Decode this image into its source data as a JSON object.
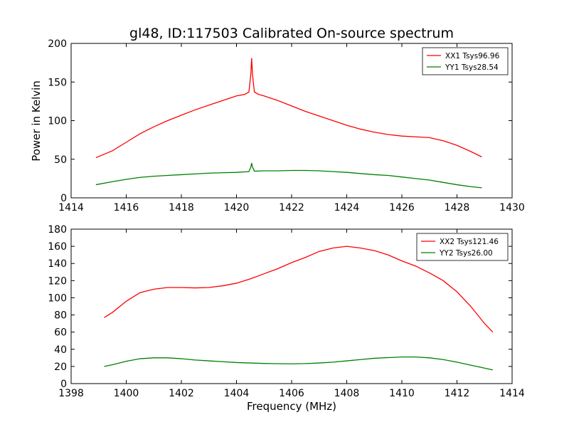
{
  "figure": {
    "title": "gl48, ID:117503 Calibrated On-source spectrum",
    "ylabel": "Power in Kelvin",
    "xlabel": "Frequency (MHz)"
  },
  "chart_data": [
    {
      "type": "line",
      "xlim": [
        1414,
        1430
      ],
      "ylim": [
        0,
        200
      ],
      "xticks": [
        1414,
        1416,
        1418,
        1420,
        1422,
        1424,
        1426,
        1428,
        1430
      ],
      "yticks": [
        0,
        50,
        100,
        150,
        200
      ],
      "legend_placement": "top-right",
      "series": [
        {
          "name": "XX1 Tsys96.96",
          "color": "#ff0000",
          "points": [
            [
              1414.9,
              52
            ],
            [
              1415.5,
              61
            ],
            [
              1416,
              72
            ],
            [
              1416.5,
              83
            ],
            [
              1417,
              92
            ],
            [
              1417.5,
              100
            ],
            [
              1418,
              107
            ],
            [
              1418.5,
              114
            ],
            [
              1419,
              120
            ],
            [
              1419.5,
              126
            ],
            [
              1420,
              132
            ],
            [
              1420.3,
              134
            ],
            [
              1420.45,
              137
            ],
            [
              1420.52,
              160
            ],
            [
              1420.55,
              181
            ],
            [
              1420.58,
              160
            ],
            [
              1420.65,
              137
            ],
            [
              1420.8,
              134
            ],
            [
              1421,
              132
            ],
            [
              1421.5,
              126
            ],
            [
              1422,
              119
            ],
            [
              1422.5,
              112
            ],
            [
              1423,
              106
            ],
            [
              1423.5,
              100
            ],
            [
              1424,
              94
            ],
            [
              1424.5,
              89
            ],
            [
              1425,
              85
            ],
            [
              1425.5,
              82
            ],
            [
              1426,
              80
            ],
            [
              1426.5,
              79
            ],
            [
              1427,
              78
            ],
            [
              1427.5,
              74
            ],
            [
              1428,
              68
            ],
            [
              1428.5,
              60
            ],
            [
              1428.9,
              53
            ]
          ]
        },
        {
          "name": "YY1 Tsys28.54",
          "color": "#008000",
          "points": [
            [
              1414.9,
              17
            ],
            [
              1415.5,
              21
            ],
            [
              1416,
              24
            ],
            [
              1416.5,
              26.5
            ],
            [
              1417,
              28
            ],
            [
              1417.5,
              29
            ],
            [
              1418,
              30
            ],
            [
              1418.5,
              31
            ],
            [
              1419,
              32
            ],
            [
              1419.5,
              32.5
            ],
            [
              1420,
              33
            ],
            [
              1420.45,
              34
            ],
            [
              1420.52,
              40
            ],
            [
              1420.55,
              45
            ],
            [
              1420.58,
              40
            ],
            [
              1420.65,
              34.5
            ],
            [
              1421,
              35
            ],
            [
              1421.5,
              35
            ],
            [
              1422,
              35.5
            ],
            [
              1422.5,
              35.5
            ],
            [
              1423,
              35
            ],
            [
              1423.5,
              34
            ],
            [
              1424,
              33
            ],
            [
              1424.5,
              31.5
            ],
            [
              1425,
              30
            ],
            [
              1425.5,
              29
            ],
            [
              1426,
              27
            ],
            [
              1426.5,
              25
            ],
            [
              1427,
              23
            ],
            [
              1427.5,
              20
            ],
            [
              1428,
              17
            ],
            [
              1428.5,
              14.5
            ],
            [
              1428.9,
              13
            ]
          ]
        }
      ]
    },
    {
      "type": "line",
      "xlim": [
        1398,
        1414
      ],
      "ylim": [
        0,
        180
      ],
      "xticks": [
        1398,
        1400,
        1402,
        1404,
        1406,
        1408,
        1410,
        1412,
        1414
      ],
      "yticks": [
        0,
        20,
        40,
        60,
        80,
        100,
        120,
        140,
        160,
        180
      ],
      "legend_placement": "top-right",
      "series": [
        {
          "name": "XX2 Tsys121.46",
          "color": "#ff0000",
          "points": [
            [
              1399.2,
              77
            ],
            [
              1399.5,
              83
            ],
            [
              1400,
              96
            ],
            [
              1400.5,
              106
            ],
            [
              1401,
              110
            ],
            [
              1401.5,
              112
            ],
            [
              1402,
              112
            ],
            [
              1402.5,
              111.5
            ],
            [
              1403,
              112
            ],
            [
              1403.5,
              114
            ],
            [
              1404,
              117
            ],
            [
              1404.5,
              122
            ],
            [
              1405,
              128
            ],
            [
              1405.5,
              134
            ],
            [
              1406,
              141
            ],
            [
              1406.5,
              147
            ],
            [
              1407,
              154
            ],
            [
              1407.5,
              158
            ],
            [
              1408,
              160
            ],
            [
              1408.5,
              158
            ],
            [
              1409,
              155
            ],
            [
              1409.5,
              150
            ],
            [
              1410,
              143
            ],
            [
              1410.5,
              137
            ],
            [
              1411,
              129
            ],
            [
              1411.5,
              120
            ],
            [
              1412,
              107
            ],
            [
              1412.5,
              90
            ],
            [
              1413,
              70
            ],
            [
              1413.3,
              60
            ]
          ]
        },
        {
          "name": "YY2 Tsys26.00",
          "color": "#008000",
          "points": [
            [
              1399.2,
              20
            ],
            [
              1399.5,
              22
            ],
            [
              1400,
              26
            ],
            [
              1400.5,
              29
            ],
            [
              1401,
              30
            ],
            [
              1401.5,
              30
            ],
            [
              1402,
              29
            ],
            [
              1402.5,
              27.5
            ],
            [
              1403,
              26.5
            ],
            [
              1403.5,
              25.5
            ],
            [
              1404,
              24.5
            ],
            [
              1404.5,
              24
            ],
            [
              1405,
              23.5
            ],
            [
              1405.5,
              23.2
            ],
            [
              1406,
              23
            ],
            [
              1406.5,
              23.3
            ],
            [
              1407,
              24
            ],
            [
              1407.5,
              25
            ],
            [
              1408,
              26.5
            ],
            [
              1408.5,
              28
            ],
            [
              1409,
              29.5
            ],
            [
              1409.5,
              30.3
            ],
            [
              1410,
              31
            ],
            [
              1410.5,
              31
            ],
            [
              1411,
              30
            ],
            [
              1411.5,
              28
            ],
            [
              1412,
              25
            ],
            [
              1412.5,
              21.5
            ],
            [
              1413,
              18
            ],
            [
              1413.3,
              16
            ]
          ]
        }
      ]
    }
  ]
}
